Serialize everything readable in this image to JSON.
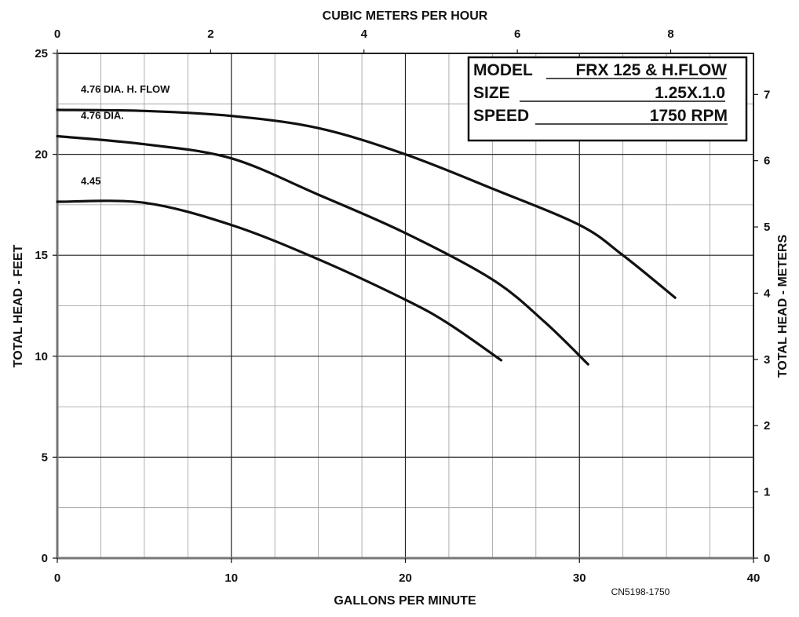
{
  "chart_data": {
    "type": "line",
    "title": "",
    "xlabel": "GALLONS PER MINUTE",
    "ylabel": "TOTAL HEAD - FEET",
    "x2label": "CUBIC METERS PER HOUR",
    "y2label": "TOTAL HEAD - METERS",
    "xlim": [
      0,
      40
    ],
    "ylim": [
      0,
      25
    ],
    "x2lim": [
      0,
      9.08
    ],
    "y2lim": [
      0,
      7.62
    ],
    "x_ticks": [
      "0",
      "10",
      "20",
      "30",
      "40"
    ],
    "y_ticks": [
      "0",
      "5",
      "10",
      "15",
      "20",
      "25"
    ],
    "x2_ticks": [
      "0",
      "2",
      "4",
      "6",
      "8"
    ],
    "y2_ticks": [
      "0",
      "1",
      "2",
      "3",
      "4",
      "5",
      "6",
      "7"
    ],
    "grid": true,
    "series": [
      {
        "name": "4.76 DIA. H. FLOW",
        "x": [
          0,
          5,
          10,
          15,
          20,
          25,
          30,
          32.5,
          35.5
        ],
        "y": [
          22.2,
          22.15,
          21.9,
          21.3,
          20.0,
          18.3,
          16.5,
          15.0,
          12.9
        ]
      },
      {
        "name": "4.76 DIA.",
        "x": [
          0,
          5,
          10,
          15,
          20,
          25,
          28,
          30.5
        ],
        "y": [
          20.9,
          20.5,
          19.8,
          18.0,
          16.1,
          13.8,
          11.7,
          9.6
        ]
      },
      {
        "name": "4.45",
        "x": [
          0,
          5,
          10,
          15,
          20,
          22.5,
          25.5
        ],
        "y": [
          17.65,
          17.6,
          16.5,
          14.8,
          12.8,
          11.6,
          9.8
        ]
      }
    ],
    "info_box": {
      "rows": [
        {
          "label": "MODEL",
          "value": "FRX 125 & H.FLOW"
        },
        {
          "label": "SIZE",
          "value": "1.25X.1.0"
        },
        {
          "label": "SPEED",
          "value": "1750 RPM"
        }
      ]
    },
    "code": "CN5198-1750"
  }
}
